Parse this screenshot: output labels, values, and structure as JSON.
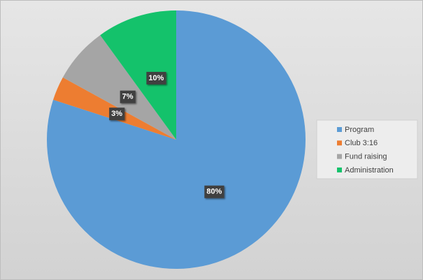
{
  "chart_data": {
    "type": "pie",
    "categories": [
      "Program",
      "Club 3:16",
      "Fund raising",
      "Administration"
    ],
    "values": [
      80,
      3,
      7,
      10
    ],
    "value_labels": [
      "80%",
      "3%",
      "7%",
      "10%"
    ],
    "colors": [
      "#5b9bd5",
      "#ed7d31",
      "#a5a5a5",
      "#14c26b"
    ],
    "legend": "right"
  }
}
